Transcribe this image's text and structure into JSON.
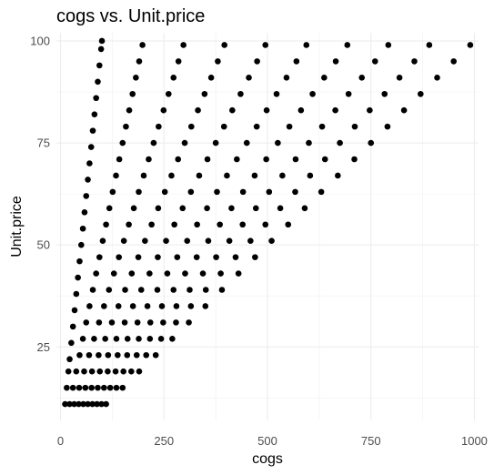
{
  "chart_data": {
    "type": "scatter",
    "title": "cogs vs. Unit.price",
    "xlabel": "cogs",
    "ylabel": "Unit.price",
    "xlim": [
      -10,
      1010
    ],
    "ylim": [
      7,
      102
    ],
    "x_ticks": [
      0,
      250,
      500,
      750,
      1000
    ],
    "y_ticks": [
      25,
      50,
      75,
      100
    ],
    "x_tick_labels": [
      "0",
      "250",
      "500",
      "750",
      "1000"
    ],
    "y_tick_labels": [
      "25",
      "50",
      "75",
      "100"
    ],
    "grid": true,
    "legend": "none",
    "point_color": "#000000",
    "series": [
      {
        "quantity": 1,
        "x": [
          11,
          15,
          19,
          22,
          26,
          30,
          34,
          38,
          42,
          46,
          50,
          54,
          58,
          62,
          66,
          70,
          74,
          78,
          82,
          86,
          90,
          94,
          98,
          100
        ],
        "y": [
          11,
          15,
          19,
          22,
          26,
          30,
          34,
          38,
          42,
          46,
          50,
          54,
          58,
          62,
          66,
          70,
          74,
          78,
          82,
          86,
          90,
          94,
          98,
          100
        ]
      },
      {
        "quantity": 2,
        "x": [
          22,
          30,
          38,
          46,
          54,
          62,
          70,
          78,
          86,
          94,
          102,
          110,
          118,
          126,
          134,
          142,
          150,
          158,
          166,
          174,
          182,
          190,
          198
        ],
        "y": [
          11,
          15,
          19,
          23,
          27,
          31,
          35,
          39,
          43,
          47,
          51,
          55,
          59,
          63,
          67,
          71,
          75,
          79,
          83,
          87,
          91,
          95,
          99
        ]
      },
      {
        "quantity": 3,
        "x": [
          33,
          45,
          57,
          69,
          81,
          93,
          105,
          117,
          129,
          141,
          153,
          165,
          177,
          189,
          201,
          213,
          225,
          237,
          249,
          261,
          273,
          285,
          297
        ],
        "y": [
          11,
          15,
          19,
          23,
          27,
          31,
          35,
          39,
          43,
          47,
          51,
          55,
          59,
          63,
          67,
          71,
          75,
          79,
          83,
          87,
          91,
          95,
          99
        ]
      },
      {
        "quantity": 4,
        "x": [
          44,
          60,
          76,
          92,
          108,
          124,
          140,
          156,
          172,
          188,
          204,
          220,
          236,
          252,
          268,
          284,
          300,
          316,
          332,
          348,
          364,
          380,
          396
        ],
        "y": [
          11,
          15,
          19,
          23,
          27,
          31,
          35,
          39,
          43,
          47,
          51,
          55,
          59,
          63,
          67,
          71,
          75,
          79,
          83,
          87,
          91,
          95,
          99
        ]
      },
      {
        "quantity": 5,
        "x": [
          55,
          75,
          95,
          115,
          135,
          155,
          175,
          195,
          215,
          235,
          255,
          275,
          295,
          315,
          335,
          355,
          375,
          395,
          415,
          435,
          455,
          475,
          495
        ],
        "y": [
          11,
          15,
          19,
          23,
          27,
          31,
          35,
          39,
          43,
          47,
          51,
          55,
          59,
          63,
          67,
          71,
          75,
          79,
          83,
          87,
          91,
          95,
          99
        ]
      },
      {
        "quantity": 6,
        "x": [
          66,
          90,
          114,
          138,
          162,
          186,
          210,
          234,
          258,
          282,
          306,
          330,
          354,
          378,
          402,
          426,
          450,
          474,
          498,
          522,
          546,
          570,
          594
        ],
        "y": [
          11,
          15,
          19,
          23,
          27,
          31,
          35,
          39,
          43,
          47,
          51,
          55,
          59,
          63,
          67,
          71,
          75,
          79,
          83,
          87,
          91,
          95,
          99
        ]
      },
      {
        "quantity": 7,
        "x": [
          77,
          105,
          133,
          161,
          189,
          217,
          245,
          273,
          301,
          329,
          357,
          385,
          413,
          441,
          469,
          497,
          525,
          553,
          581,
          609,
          637,
          665,
          693
        ],
        "y": [
          11,
          15,
          19,
          23,
          27,
          31,
          35,
          39,
          43,
          47,
          51,
          55,
          59,
          63,
          67,
          71,
          75,
          79,
          83,
          87,
          91,
          95,
          99
        ]
      },
      {
        "quantity": 8,
        "x": [
          88,
          120,
          152,
          184,
          216,
          248,
          280,
          312,
          344,
          376,
          408,
          440,
          472,
          504,
          536,
          568,
          600,
          632,
          664,
          696,
          728,
          760,
          792
        ],
        "y": [
          11,
          15,
          19,
          23,
          27,
          31,
          35,
          39,
          43,
          47,
          51,
          55,
          59,
          63,
          67,
          71,
          75,
          79,
          83,
          87,
          91,
          95,
          99
        ]
      },
      {
        "quantity": 9,
        "x": [
          99,
          135,
          171,
          207,
          243,
          279,
          315,
          351,
          387,
          423,
          459,
          495,
          531,
          567,
          603,
          639,
          675,
          711,
          747,
          783,
          819,
          855,
          891
        ],
        "y": [
          11,
          15,
          19,
          23,
          27,
          31,
          35,
          39,
          43,
          47,
          51,
          55,
          59,
          63,
          67,
          71,
          75,
          79,
          83,
          87,
          91,
          95,
          99
        ]
      },
      {
        "quantity": 10,
        "x": [
          110,
          150,
          190,
          230,
          270,
          310,
          350,
          390,
          430,
          470,
          510,
          550,
          590,
          630,
          670,
          710,
          750,
          790,
          830,
          870,
          910,
          950,
          990
        ],
        "y": [
          11,
          15,
          19,
          23,
          27,
          31,
          35,
          39,
          43,
          47,
          51,
          55,
          59,
          63,
          67,
          71,
          75,
          79,
          83,
          87,
          91,
          95,
          99
        ]
      }
    ]
  }
}
